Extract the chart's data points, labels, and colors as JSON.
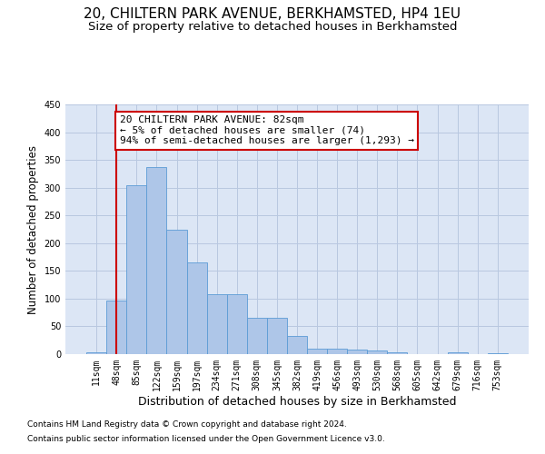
{
  "title1": "20, CHILTERN PARK AVENUE, BERKHAMSTED, HP4 1EU",
  "title2": "Size of property relative to detached houses in Berkhamsted",
  "xlabel": "Distribution of detached houses by size in Berkhamsted",
  "ylabel": "Number of detached properties",
  "footnote1": "Contains HM Land Registry data © Crown copyright and database right 2024.",
  "footnote2": "Contains public sector information licensed under the Open Government Licence v3.0.",
  "bar_labels": [
    "11sqm",
    "48sqm",
    "85sqm",
    "122sqm",
    "159sqm",
    "197sqm",
    "234sqm",
    "271sqm",
    "308sqm",
    "345sqm",
    "382sqm",
    "419sqm",
    "456sqm",
    "493sqm",
    "530sqm",
    "568sqm",
    "605sqm",
    "642sqm",
    "679sqm",
    "716sqm",
    "753sqm"
  ],
  "bar_values": [
    4,
    97,
    304,
    337,
    224,
    165,
    108,
    108,
    65,
    65,
    32,
    10,
    10,
    8,
    6,
    3,
    0,
    0,
    3,
    0,
    2
  ],
  "bar_color": "#aec6e8",
  "bar_edge_color": "#5b9bd5",
  "annotation_line1": "20 CHILTERN PARK AVENUE: 82sqm",
  "annotation_line2": "← 5% of detached houses are smaller (74)",
  "annotation_line3": "94% of semi-detached houses are larger (1,293) →",
  "annotation_box_color": "#ffffff",
  "annotation_box_edge": "#cc0000",
  "vline_color": "#cc0000",
  "vline_x": 1.0,
  "ylim": [
    0,
    450
  ],
  "yticks": [
    0,
    50,
    100,
    150,
    200,
    250,
    300,
    350,
    400,
    450
  ],
  "background_color": "#ffffff",
  "plot_bg_color": "#dce6f5",
  "grid_color": "#b8c8e0",
  "title1_fontsize": 11,
  "title2_fontsize": 9.5,
  "xlabel_fontsize": 9,
  "ylabel_fontsize": 8.5,
  "tick_fontsize": 7,
  "footnote_fontsize": 6.5,
  "annot_fontsize": 8
}
